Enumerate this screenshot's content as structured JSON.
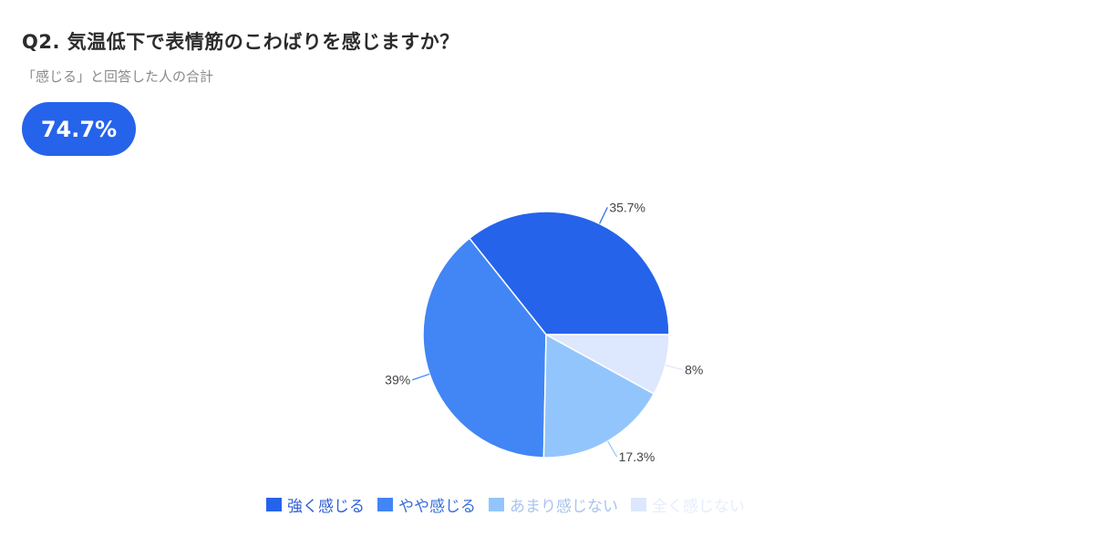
{
  "header": {
    "title": "Q2. 気温低下で表情筋のこわばりを感じますか？",
    "subtitle": "「感じる」と回答した人の合計",
    "badge": "74.7%"
  },
  "chart_data": {
    "type": "pie",
    "title": "Q2. 気温低下で表情筋のこわばりを感じますか？",
    "categories": [
      "強く感じる",
      "やや感じる",
      "あまり感じない",
      "全く感じない"
    ],
    "values": [
      35.7,
      39,
      17.3,
      8
    ],
    "labels": [
      "35.7%",
      "39%",
      "17.3%",
      "8%"
    ],
    "colors": [
      "#2563eb",
      "#4285f4",
      "#93c5fd",
      "#dde7fd"
    ],
    "legend_position": "bottom"
  },
  "legend": [
    {
      "label": "強く感じる",
      "color": "#2563eb",
      "text_color": "#2f5fd6"
    },
    {
      "label": "やや感じる",
      "color": "#4285f4",
      "text_color": "#3a6fd8"
    },
    {
      "label": "あまり感じない",
      "color": "#93c5fd",
      "text_color": "#a9c4ee"
    },
    {
      "label": "全く感じない",
      "color": "#dde7fd",
      "text_color": "#e6edfb"
    }
  ]
}
